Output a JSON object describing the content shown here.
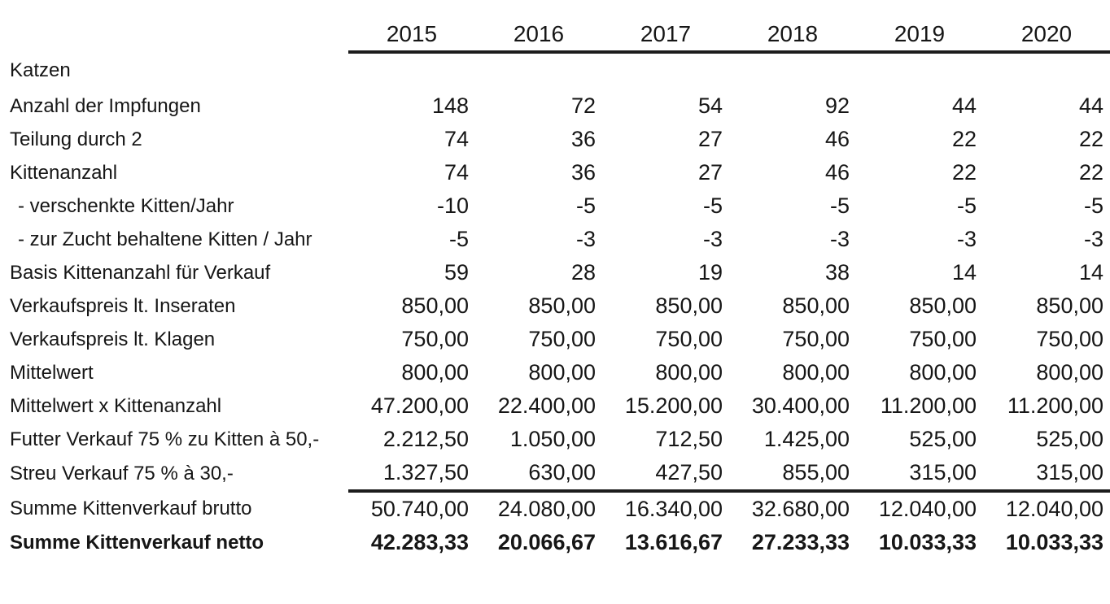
{
  "page": {
    "background_color": "#ffffff",
    "ink_color": "#161616",
    "kind": "scanned-spreadsheet-table"
  },
  "table": {
    "corner_header": "",
    "year_headers": [
      "2015",
      "2016",
      "2017",
      "2018",
      "2019",
      "2020"
    ],
    "rows": [
      {
        "label": "Katzen",
        "values": [
          "",
          "",
          "",
          "",
          "",
          ""
        ]
      },
      {
        "label": "Anzahl der Impfungen",
        "values": [
          "148",
          "72",
          "54",
          "92",
          "44",
          "44"
        ]
      },
      {
        "label": "Teilung durch 2",
        "values": [
          "74",
          "36",
          "27",
          "46",
          "22",
          "22"
        ]
      },
      {
        "label": "Kittenanzahl",
        "values": [
          "74",
          "36",
          "27",
          "46",
          "22",
          "22"
        ]
      },
      {
        "label": "- verschenkte Kitten/Jahr",
        "indent": true,
        "values": [
          "-10",
          "-5",
          "-5",
          "-5",
          "-5",
          "-5"
        ]
      },
      {
        "label": "- zur Zucht behaltene Kitten / Jahr",
        "indent": true,
        "values": [
          "-5",
          "-3",
          "-3",
          "-3",
          "-3",
          "-3"
        ]
      },
      {
        "label": "Basis Kittenanzahl für Verkauf",
        "values": [
          "59",
          "28",
          "19",
          "38",
          "14",
          "14"
        ]
      },
      {
        "label": "Verkaufspreis lt. Inseraten",
        "values": [
          "850,00",
          "850,00",
          "850,00",
          "850,00",
          "850,00",
          "850,00"
        ]
      },
      {
        "label": "Verkaufspreis lt. Klagen",
        "values": [
          "750,00",
          "750,00",
          "750,00",
          "750,00",
          "750,00",
          "750,00"
        ]
      },
      {
        "label": "Mittelwert",
        "values": [
          "800,00",
          "800,00",
          "800,00",
          "800,00",
          "800,00",
          "800,00"
        ]
      },
      {
        "label": "Mittelwert x Kittenanzahl",
        "values": [
          "47.200,00",
          "22.400,00",
          "15.200,00",
          "30.400,00",
          "11.200,00",
          "11.200,00"
        ]
      },
      {
        "label": "Futter Verkauf 75 % zu Kitten à 50,-",
        "values": [
          "2.212,50",
          "1.050,00",
          "712,50",
          "1.425,00",
          "525,00",
          "525,00"
        ]
      },
      {
        "label": "Streu Verkauf 75 % à 30,-",
        "values": [
          "1.327,50",
          "630,00",
          "427,50",
          "855,00",
          "315,00",
          "315,00"
        ]
      },
      {
        "label": "Summe Kittenverkauf brutto",
        "rule_above": true,
        "values": [
          "50.740,00",
          "24.080,00",
          "16.340,00",
          "32.680,00",
          "12.040,00",
          "12.040,00"
        ]
      },
      {
        "label": "Summe Kittenverkauf netto",
        "bold": true,
        "values": [
          "42.283,33",
          "20.066,67",
          "13.616,67",
          "27.233,33",
          "10.033,33",
          "10.033,33"
        ]
      }
    ]
  }
}
